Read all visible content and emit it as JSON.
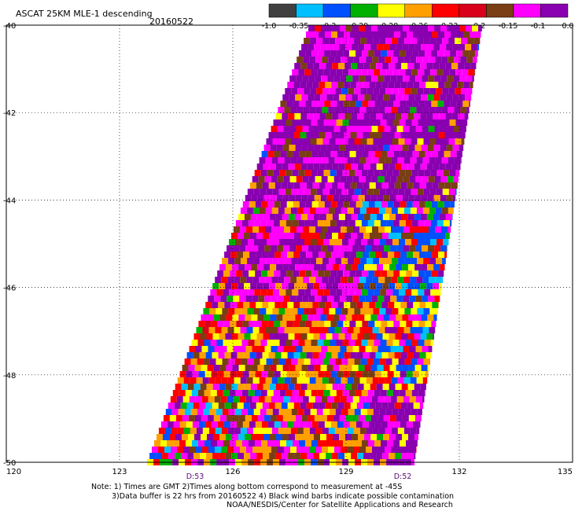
{
  "chart_data": {
    "type": "heatmap",
    "title": "ASCAT 25KM MLE-1 descending",
    "date": "20160522",
    "xlim": [
      120,
      135
    ],
    "ylim": [
      -50,
      -40
    ],
    "x_ticks": [
      "120",
      "123",
      "126",
      "129",
      "132",
      "135"
    ],
    "y_ticks": [
      "-40",
      "-42",
      "-44",
      "-46",
      "-48",
      "-50"
    ],
    "grid": true,
    "colorbar": {
      "labels": [
        "-1.0",
        "-0.35",
        "-0.3",
        "-0.29",
        "-0.28",
        "-0.26",
        "-0.23",
        "-0.2",
        "-0.15",
        "-0.1",
        "0.0"
      ],
      "colors": [
        "#404040",
        "#00bfff",
        "#0050ff",
        "#00b000",
        "#ffff00",
        "#ffa000",
        "#ff0000",
        "#d8001a",
        "#7a3e14",
        "#ff00ff",
        "#8800b0"
      ]
    },
    "swath": {
      "lat_top": -40,
      "lat_bottom": -50,
      "west_lon_top": 128.0,
      "east_lon_top": 132.6,
      "west_lon_bottom": 123.7,
      "east_lon_bottom": 130.8
    },
    "time_labels": [
      {
        "lon": 125.0,
        "label": "D:53"
      },
      {
        "lon": 130.5,
        "label": "D:52"
      }
    ]
  },
  "notes": [
    "Note: 1) Times are GMT 2)Times along bottom correspond to measurement at -45S",
    "3)Data buffer is 22 hrs from 20160522 4) Black wind barbs indicate possible contamination",
    "NOAA/NESDIS/Center for Satellite Applications and Research"
  ]
}
